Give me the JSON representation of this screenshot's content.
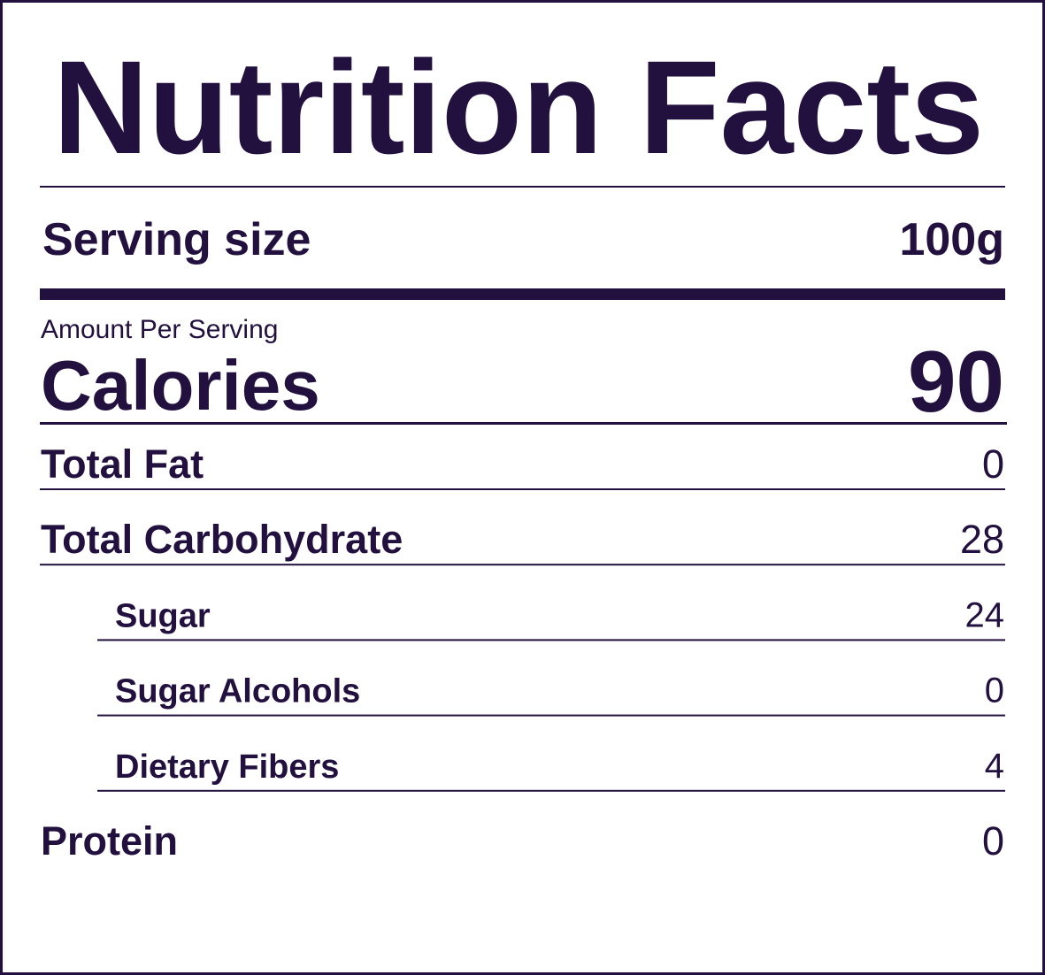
{
  "header": {
    "title": "Nutrition Facts"
  },
  "serving": {
    "label": "Serving size",
    "value": "100g"
  },
  "amount_per_serving": "Amount Per Serving",
  "calories": {
    "label": "Calories",
    "value": 90
  },
  "nutrients": [
    {
      "label": "Total Fat",
      "value": 0
    },
    {
      "label": "Total Carbohydrate",
      "value": 28,
      "sub": [
        {
          "label": "Sugar",
          "value": 24
        },
        {
          "label": "Sugar Alcohols",
          "value": 0
        },
        {
          "label": "Dietary Fibers",
          "value": 4
        }
      ]
    },
    {
      "label": "Protein",
      "value": 0
    }
  ]
}
